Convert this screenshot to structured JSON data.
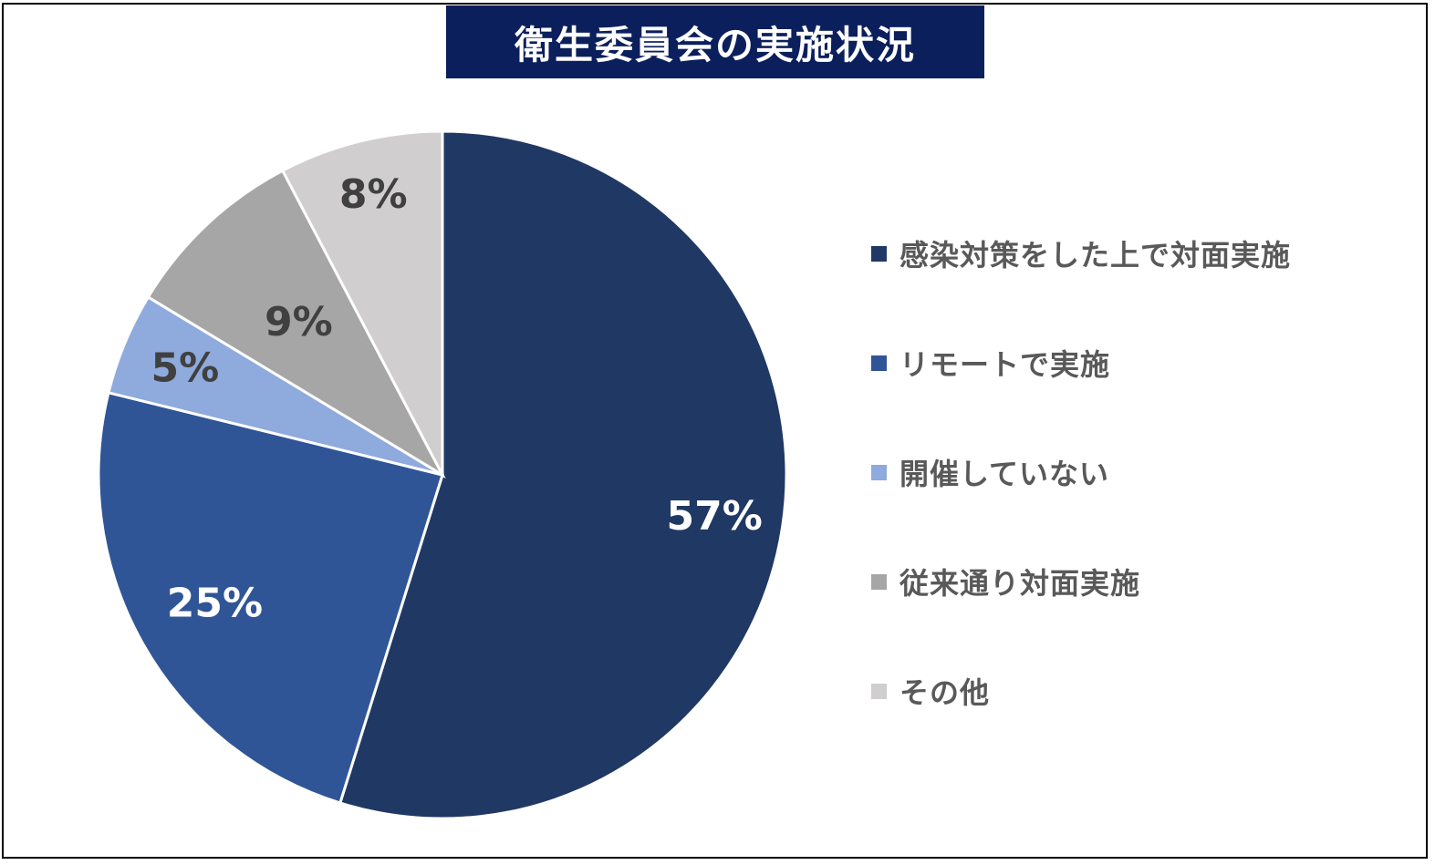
{
  "header": {
    "title": "衛生委員会の実施状況",
    "title_bg": "#0b1f5c"
  },
  "chart_data": {
    "type": "pie",
    "title": "衛生委員会の実施状況",
    "legend_position": "right",
    "slices": [
      {
        "label": "感染対策をした上で対面実施",
        "value": 57,
        "value_label": "57%",
        "color": "#203864",
        "label_color": "#ffffff"
      },
      {
        "label": "リモートで実施",
        "value": 25,
        "value_label": "25%",
        "color": "#2f5597",
        "label_color": "#ffffff"
      },
      {
        "label": "開催していない",
        "value": 5,
        "value_label": "5%",
        "color": "#8faadc",
        "label_color": "#404040"
      },
      {
        "label": "従来通り対面実施",
        "value": 9,
        "value_label": "9%",
        "color": "#a6a6a6",
        "label_color": "#404040"
      },
      {
        "label": "その他",
        "value": 8,
        "value_label": "8%",
        "color": "#d0cece",
        "label_color": "#404040"
      }
    ]
  }
}
